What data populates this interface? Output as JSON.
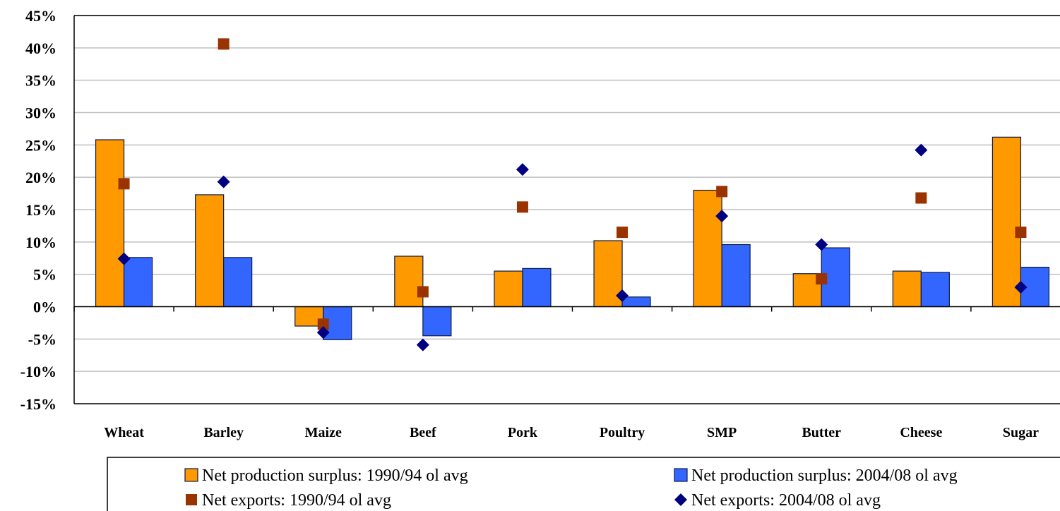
{
  "chart_data": {
    "type": "bar",
    "categories": [
      "Wheat",
      "Barley",
      "Maize",
      "Beef",
      "Pork",
      "Poultry",
      "SMP",
      "Butter",
      "Cheese",
      "Sugar"
    ],
    "y_tick_labels": [
      "45%",
      "40%",
      "35%",
      "30%",
      "25%",
      "20%",
      "15%",
      "10%",
      "5%",
      "0%",
      "-5%",
      "-10%",
      "-15%"
    ],
    "ylim": [
      -15,
      45
    ],
    "y_unit": "%",
    "grid": true,
    "legend_position": "bottom",
    "series": [
      {
        "name": "Net production surplus: 1990/94 ol avg",
        "kind": "bar",
        "color": "#FF9900",
        "values": [
          25.8,
          17.3,
          -3.0,
          7.8,
          5.5,
          10.2,
          18.0,
          5.1,
          5.5,
          26.2
        ]
      },
      {
        "name": "Net production surplus: 2004/08 ol avg",
        "kind": "bar",
        "color": "#3366FF",
        "values": [
          7.6,
          7.6,
          -5.1,
          -4.5,
          5.9,
          1.5,
          9.6,
          9.1,
          5.3,
          6.1
        ]
      },
      {
        "name": "Net exports: 1990/94 ol avg",
        "kind": "marker-square",
        "color": "#993300",
        "values": [
          19.0,
          40.6,
          -2.7,
          2.3,
          15.4,
          11.5,
          17.8,
          4.3,
          16.8,
          11.5
        ]
      },
      {
        "name": "Net exports: 2004/08 ol avg",
        "kind": "marker-diamond",
        "color": "#000080",
        "values": [
          7.4,
          19.3,
          -4.0,
          -5.9,
          21.2,
          1.7,
          14.0,
          9.6,
          24.2,
          3.0
        ]
      }
    ]
  }
}
